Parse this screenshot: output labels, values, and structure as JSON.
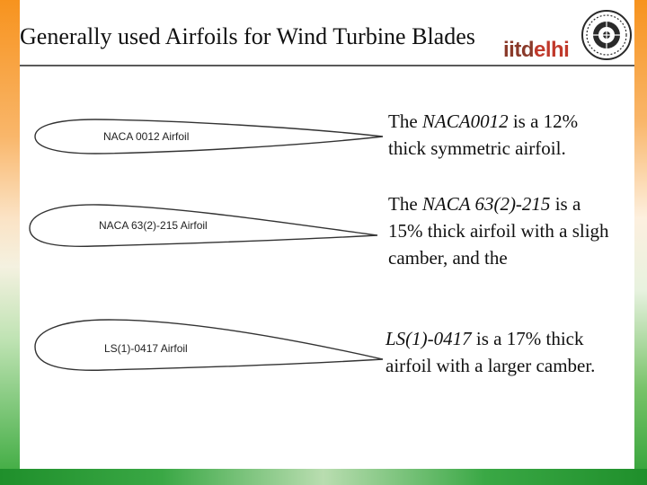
{
  "slide": {
    "title": "Generally used Airfoils for Wind Turbine Blades",
    "logo": {
      "prefix": "iitd",
      "suffix": "elhi"
    }
  },
  "airfoils": [
    {
      "label": "NACA 0012 Airfoil"
    },
    {
      "label": "NACA 63(2)-215 Airfoil"
    },
    {
      "label": "LS(1)-0417 Airfoil"
    }
  ],
  "descriptions": {
    "p1": {
      "pre": "The ",
      "name": "NACA0012",
      "post": " is a 12%",
      "line2": "thick symmetric airfoil."
    },
    "p2": {
      "pre": "The ",
      "name": "NACA 63(2)-215",
      "post": " is a",
      "line2": "15% thick airfoil with a sligh",
      "line3": "camber, and the"
    },
    "p3": {
      "name": "LS(1)-0417",
      "post": " is a 17% thick",
      "line2": "airfoil with a larger camber."
    }
  },
  "colors": {
    "saffron": "#f7931e",
    "green": "#2fa136",
    "rule": "#5a5a5a",
    "logo_red": "#c0392b"
  },
  "icons": {
    "emblem": "iit-delhi-emblem-icon"
  }
}
